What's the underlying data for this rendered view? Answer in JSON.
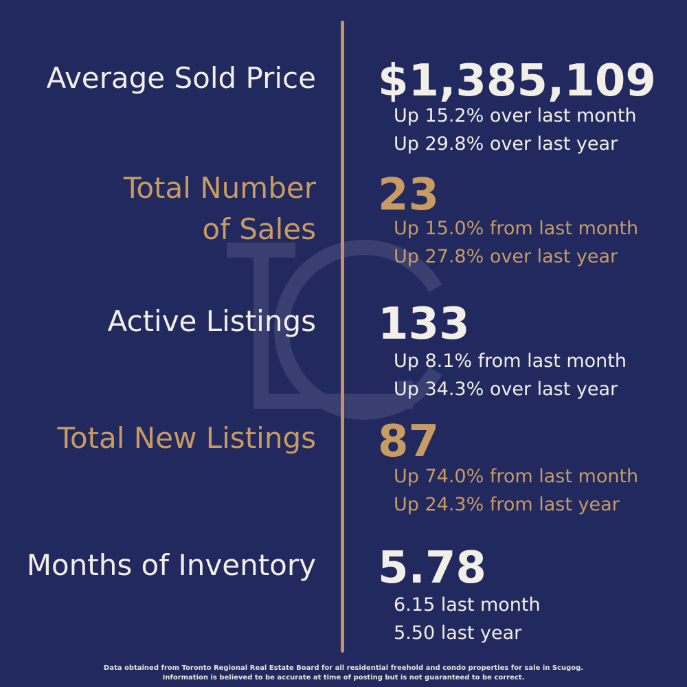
{
  "colors": {
    "background": "#22295e",
    "gold": "#c89b62",
    "white": "#f2efe9"
  },
  "stats": [
    {
      "label": "Average Sold Price",
      "value": "$1,385,109",
      "sub1": "Up 15.2% over last month",
      "sub2": "Up 29.8% over last year"
    },
    {
      "label_line1": "Total Number",
      "label_line2": "of Sales",
      "value": "23",
      "sub1": "Up 15.0% from last month",
      "sub2": "Up 27.8% over last year"
    },
    {
      "label": "Active Listings",
      "value": "133",
      "sub1": "Up 8.1% from last month",
      "sub2": "Up 34.3% over last year"
    },
    {
      "label": "Total New Listings",
      "value": "87",
      "sub1": "Up 74.0% from last month",
      "sub2": "Up 24.3% from last year"
    },
    {
      "label": "Months of Inventory",
      "value": "5.78",
      "sub1": "6.15 last month",
      "sub2": "5.50 last year"
    }
  ],
  "footer": {
    "line1": "Data obtained from Toronto Regional Real Estate Board for all residential freehold and condo properties for sale in Scugog.",
    "line2": "Information is believed to be accurate at time of posting but is not guaranteed to be correct."
  }
}
